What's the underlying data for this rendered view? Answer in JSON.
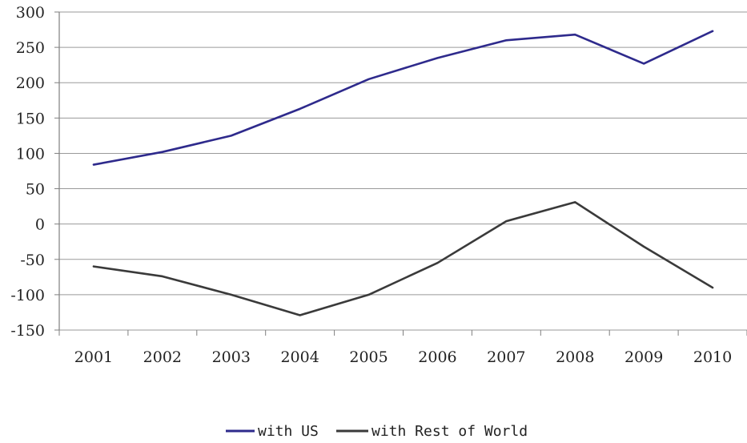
{
  "chart_data": {
    "type": "line",
    "title": "",
    "xlabel": "",
    "ylabel": "",
    "categories": [
      "2001",
      "2002",
      "2003",
      "2004",
      "2005",
      "2006",
      "2007",
      "2008",
      "2009",
      "2010"
    ],
    "ylim": [
      -150,
      300
    ],
    "yticks": [
      300,
      250,
      200,
      150,
      100,
      50,
      0,
      -50,
      -100,
      -150
    ],
    "grid": true,
    "legend": "bottom",
    "series": [
      {
        "name": "with US",
        "color": "#2e2a8c",
        "values": [
          84,
          102,
          125,
          163,
          205,
          235,
          260,
          268,
          227,
          273
        ]
      },
      {
        "name": "with Rest of World",
        "color": "#3a3a3a",
        "values": [
          -60,
          -74,
          -100,
          -129,
          -100,
          -55,
          4,
          31,
          -32,
          -90
        ]
      }
    ]
  }
}
